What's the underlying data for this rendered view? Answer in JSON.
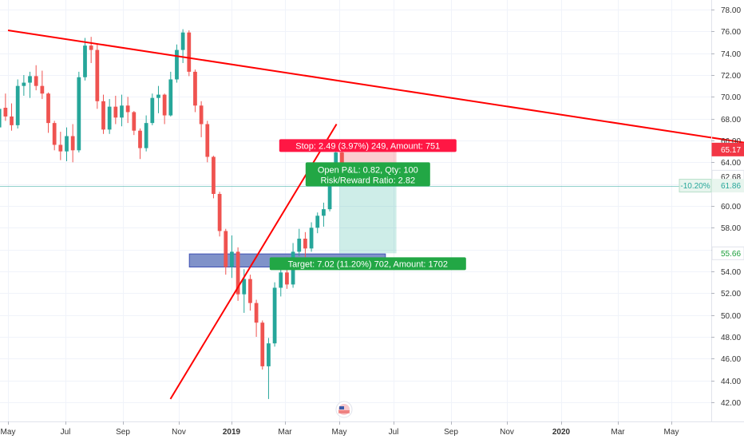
{
  "chart_data": {
    "type": "candlestick",
    "y_ticks": [
      "78.00",
      "76.00",
      "74.00",
      "72.00",
      "70.00",
      "68.00",
      "66.00",
      "64.00",
      "62.00",
      "60.00",
      "58.00",
      "56.00",
      "54.00",
      "52.00",
      "50.00",
      "48.00",
      "46.00",
      "44.00",
      "42.00"
    ],
    "ylim": [
      41.0,
      78.9
    ],
    "x_ticks": [
      {
        "label": "May",
        "bold": false
      },
      {
        "label": "Jul",
        "bold": false
      },
      {
        "label": "Sep",
        "bold": false
      },
      {
        "label": "Nov",
        "bold": false
      },
      {
        "label": "2019",
        "bold": true
      },
      {
        "label": "Mar",
        "bold": false
      },
      {
        "label": "May",
        "bold": false
      },
      {
        "label": "Jul",
        "bold": false
      },
      {
        "label": "Sep",
        "bold": false
      },
      {
        "label": "Nov",
        "bold": false
      },
      {
        "label": "2020",
        "bold": true
      },
      {
        "label": "Mar",
        "bold": false
      },
      {
        "label": "May",
        "bold": false
      }
    ],
    "price_badges": [
      {
        "value": "65.17",
        "bg": "#f23645",
        "fg": "#ffffff"
      },
      {
        "value": "62.68",
        "bg": "#ffffff",
        "fg": "#333333"
      },
      {
        "value": "61.86",
        "bg": "#e8f5ee",
        "fg": "#26a69a"
      },
      {
        "value": "55.66",
        "bg": "#ffffff",
        "fg": "#1a9e3a"
      }
    ],
    "percent_badge": "-10.20%",
    "current_price": 61.86,
    "trendlines": [
      {
        "from": [
          0.0,
          76.1
        ],
        "to": [
          30.75,
          52.8
        ]
      },
      {
        "from": [
          2.85,
          42.3
        ],
        "to": [
          5.95,
          67.5
        ]
      }
    ],
    "zone": {
      "top": 55.6,
      "bottom": 54.4
    },
    "position": {
      "entry": 62.68,
      "stop": 65.17,
      "target": 55.66,
      "stop_label": "Stop: 2.49 (3.97%) 249, Amount: 751",
      "open_label": "Open P&L: 0.82, Qty: 100",
      "ratio_label": "Risk/Reward Ratio: 2.82",
      "target_label": "Target: 7.02 (11.20%) 702, Amount: 1702"
    },
    "colors": {
      "up": "#26a69a",
      "down": "#ef5350",
      "trend": "#ff0000",
      "zone": "#6a7fc0",
      "profit": "#22a745",
      "loss": "#ff1744"
    },
    "candles": [
      {
        "o": 67.2,
        "h": 69.3,
        "l": 67.0,
        "c": 68.9
      },
      {
        "o": 69.0,
        "h": 70.3,
        "l": 67.8,
        "c": 68.2
      },
      {
        "o": 68.2,
        "h": 69.4,
        "l": 66.9,
        "c": 67.4
      },
      {
        "o": 67.4,
        "h": 71.6,
        "l": 67.1,
        "c": 71.0
      },
      {
        "o": 71.0,
        "h": 72.0,
        "l": 70.1,
        "c": 71.3
      },
      {
        "o": 71.3,
        "h": 72.3,
        "l": 69.9,
        "c": 71.9
      },
      {
        "o": 71.9,
        "h": 72.9,
        "l": 70.6,
        "c": 71.0
      },
      {
        "o": 71.0,
        "h": 72.4,
        "l": 69.8,
        "c": 70.3
      },
      {
        "o": 70.3,
        "h": 70.4,
        "l": 66.7,
        "c": 67.6
      },
      {
        "o": 67.6,
        "h": 67.8,
        "l": 65.1,
        "c": 65.6
      },
      {
        "o": 65.6,
        "h": 66.8,
        "l": 64.2,
        "c": 65.0
      },
      {
        "o": 65.0,
        "h": 67.2,
        "l": 64.1,
        "c": 66.4
      },
      {
        "o": 66.4,
        "h": 67.5,
        "l": 64.0,
        "c": 65.1
      },
      {
        "o": 65.1,
        "h": 72.3,
        "l": 64.9,
        "c": 71.8
      },
      {
        "o": 71.8,
        "h": 75.4,
        "l": 71.5,
        "c": 74.7
      },
      {
        "o": 74.7,
        "h": 75.5,
        "l": 73.1,
        "c": 74.3
      },
      {
        "o": 74.3,
        "h": 74.9,
        "l": 68.9,
        "c": 69.6
      },
      {
        "o": 69.6,
        "h": 70.2,
        "l": 66.6,
        "c": 67.0
      },
      {
        "o": 67.0,
        "h": 69.8,
        "l": 66.6,
        "c": 69.1
      },
      {
        "o": 69.1,
        "h": 70.1,
        "l": 67.5,
        "c": 68.1
      },
      {
        "o": 68.1,
        "h": 70.2,
        "l": 67.3,
        "c": 69.2
      },
      {
        "o": 69.2,
        "h": 70.0,
        "l": 67.6,
        "c": 68.6
      },
      {
        "o": 68.6,
        "h": 68.7,
        "l": 66.5,
        "c": 66.9
      },
      {
        "o": 66.9,
        "h": 67.1,
        "l": 64.3,
        "c": 65.3
      },
      {
        "o": 65.3,
        "h": 68.3,
        "l": 65.0,
        "c": 67.6
      },
      {
        "o": 67.6,
        "h": 70.3,
        "l": 67.4,
        "c": 69.9
      },
      {
        "o": 69.9,
        "h": 71.0,
        "l": 68.5,
        "c": 70.2
      },
      {
        "o": 70.2,
        "h": 70.3,
        "l": 67.5,
        "c": 68.3
      },
      {
        "o": 68.3,
        "h": 72.3,
        "l": 68.2,
        "c": 71.6
      },
      {
        "o": 71.6,
        "h": 74.8,
        "l": 71.3,
        "c": 74.3
      },
      {
        "o": 74.3,
        "h": 76.2,
        "l": 73.1,
        "c": 75.9
      },
      {
        "o": 75.9,
        "h": 76.1,
        "l": 71.9,
        "c": 72.3
      },
      {
        "o": 72.3,
        "h": 72.5,
        "l": 68.6,
        "c": 69.2
      },
      {
        "o": 69.2,
        "h": 69.6,
        "l": 66.3,
        "c": 67.5
      },
      {
        "o": 67.5,
        "h": 67.8,
        "l": 64.0,
        "c": 64.5
      },
      {
        "o": 64.5,
        "h": 64.6,
        "l": 60.7,
        "c": 61.1
      },
      {
        "o": 61.1,
        "h": 61.3,
        "l": 57.2,
        "c": 57.7
      },
      {
        "o": 57.7,
        "h": 57.9,
        "l": 53.7,
        "c": 54.4
      },
      {
        "o": 54.4,
        "h": 57.3,
        "l": 53.4,
        "c": 55.8
      },
      {
        "o": 55.8,
        "h": 56.2,
        "l": 51.3,
        "c": 51.9
      },
      {
        "o": 51.9,
        "h": 54.2,
        "l": 50.2,
        "c": 53.3
      },
      {
        "o": 53.3,
        "h": 53.7,
        "l": 50.4,
        "c": 51.1
      },
      {
        "o": 51.1,
        "h": 51.4,
        "l": 48.0,
        "c": 49.3
      },
      {
        "o": 49.3,
        "h": 49.5,
        "l": 45.0,
        "c": 45.3
      },
      {
        "o": 45.3,
        "h": 47.9,
        "l": 42.3,
        "c": 47.4
      },
      {
        "o": 47.4,
        "h": 53.0,
        "l": 47.1,
        "c": 52.5
      },
      {
        "o": 52.5,
        "h": 54.6,
        "l": 51.7,
        "c": 53.9
      },
      {
        "o": 53.9,
        "h": 55.3,
        "l": 52.4,
        "c": 52.8
      },
      {
        "o": 52.8,
        "h": 56.6,
        "l": 52.5,
        "c": 55.8
      },
      {
        "o": 55.8,
        "h": 57.9,
        "l": 55.4,
        "c": 57.0
      },
      {
        "o": 57.0,
        "h": 57.6,
        "l": 55.3,
        "c": 56.1
      },
      {
        "o": 56.1,
        "h": 58.5,
        "l": 55.8,
        "c": 58.0
      },
      {
        "o": 58.0,
        "h": 59.4,
        "l": 57.5,
        "c": 59.1
      },
      {
        "o": 59.1,
        "h": 60.3,
        "l": 58.1,
        "c": 59.7
      },
      {
        "o": 59.7,
        "h": 63.3,
        "l": 59.5,
        "c": 62.8
      },
      {
        "o": 62.8,
        "h": 65.4,
        "l": 62.1,
        "c": 64.9
      },
      {
        "o": 64.9,
        "h": 65.9,
        "l": 62.3,
        "c": 62.7
      }
    ]
  }
}
